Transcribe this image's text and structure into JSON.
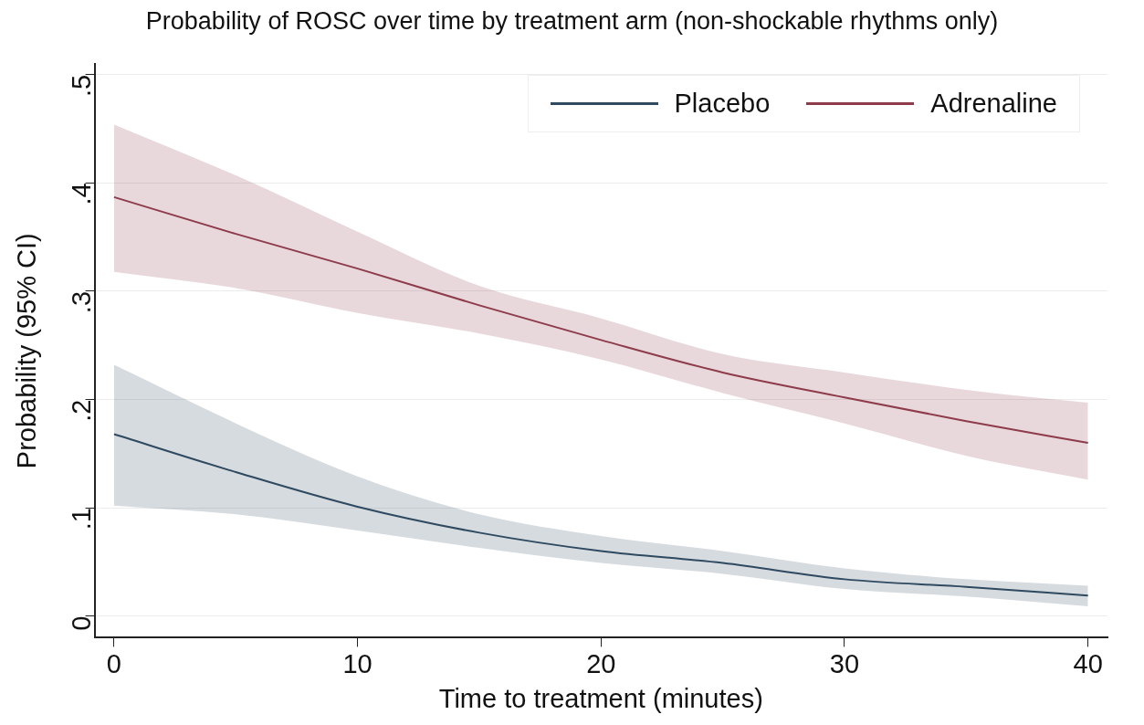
{
  "chart_data": {
    "type": "line",
    "title": "Probability of ROSC over time by treatment arm (non-shockable rhythms only)",
    "xlabel": "Time to treatment (minutes)",
    "ylabel": "Probability (95% CI)",
    "x": [
      0,
      5,
      10,
      15,
      20,
      25,
      30,
      35,
      40
    ],
    "series": [
      {
        "name": "Placebo",
        "color": "#2f4a60",
        "values": [
          0.168,
          0.133,
          0.101,
          0.077,
          0.06,
          0.049,
          0.034,
          0.027,
          0.019
        ],
        "lower": [
          0.102,
          0.094,
          0.079,
          0.063,
          0.049,
          0.039,
          0.025,
          0.018,
          0.009
        ],
        "upper": [
          0.232,
          0.178,
          0.129,
          0.094,
          0.074,
          0.06,
          0.044,
          0.034,
          0.028
        ]
      },
      {
        "name": "Adrenaline",
        "color": "#8e3b4b",
        "values": [
          0.387,
          0.353,
          0.321,
          0.287,
          0.255,
          0.225,
          0.202,
          0.18,
          0.16
        ],
        "lower": [
          0.318,
          0.303,
          0.28,
          0.261,
          0.237,
          0.206,
          0.178,
          0.148,
          0.126
        ],
        "upper": [
          0.454,
          0.407,
          0.355,
          0.305,
          0.275,
          0.242,
          0.225,
          0.209,
          0.197
        ]
      }
    ],
    "xlim": [
      -0.8,
      40.8
    ],
    "xticks": [
      0,
      10,
      20,
      30,
      40
    ],
    "ylim": [
      -0.02,
      0.51
    ],
    "yticks": [
      {
        "value": 0,
        "label": "0"
      },
      {
        "value": 0.1,
        "label": ".1"
      },
      {
        "value": 0.2,
        "label": ".2"
      },
      {
        "value": 0.3,
        "label": ".3"
      },
      {
        "value": 0.4,
        "label": ".4"
      },
      {
        "value": 0.5,
        "label": ".5"
      }
    ],
    "grid": "y",
    "legend": "top right",
    "marker": "none",
    "line_style": "solid"
  }
}
